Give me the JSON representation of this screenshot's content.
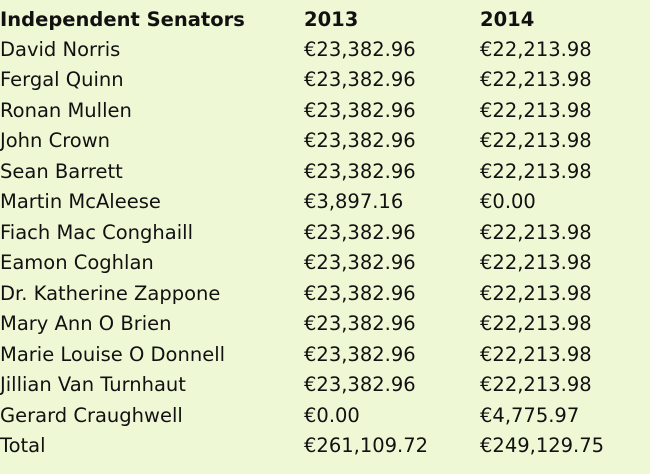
{
  "table": {
    "headers": [
      "Independent Senators",
      "2013",
      "2014"
    ],
    "rows": [
      [
        "David Norris",
        "€23,382.96",
        "€22,213.98"
      ],
      [
        "Fergal Quinn",
        "€23,382.96",
        "€22,213.98"
      ],
      [
        "Ronan Mullen",
        "€23,382.96",
        "€22,213.98"
      ],
      [
        "John Crown",
        "€23,382.96",
        "€22,213.98"
      ],
      [
        "Sean Barrett",
        "€23,382.96",
        "€22,213.98"
      ],
      [
        "Martin McAleese",
        "€3,897.16",
        "€0.00"
      ],
      [
        "Fiach Mac Conghaill",
        "€23,382.96",
        "€22,213.98"
      ],
      [
        "Eamon Coghlan",
        "€23,382.96",
        "€22,213.98"
      ],
      [
        "Dr. Katherine Zappone",
        "€23,382.96",
        "€22,213.98"
      ],
      [
        "Mary Ann O Brien",
        "€23,382.96",
        "€22,213.98"
      ],
      [
        "Marie Louise O Donnell",
        "€23,382.96",
        "€22,213.98"
      ],
      [
        "Jillian Van Turnhaut",
        "€23,382.96",
        "€22,213.98"
      ],
      [
        "Gerard Craughwell",
        "€0.00",
        "€4,775.97"
      ],
      [
        "Total",
        "€261,109.72",
        "€249,129.75"
      ]
    ]
  },
  "colors": {
    "background": "#eff8d5",
    "text": "#111111"
  }
}
